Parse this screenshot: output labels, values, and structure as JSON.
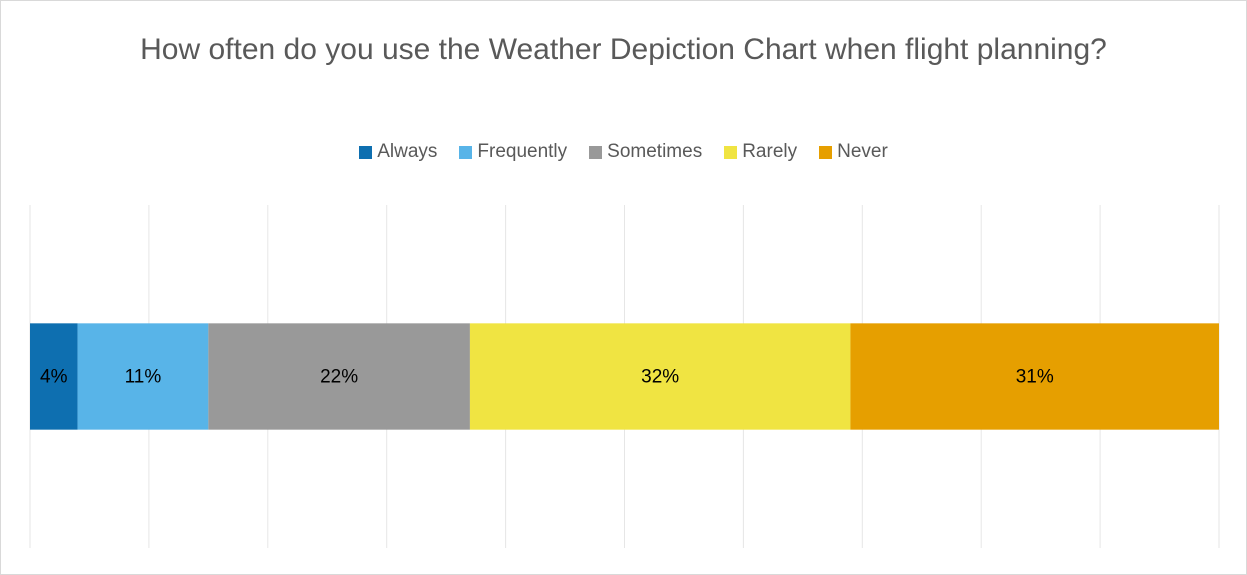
{
  "chart_data": {
    "type": "bar",
    "orientation": "horizontal",
    "stacked": true,
    "title": "How often do you use the Weather Depiction Chart when flight planning?",
    "categories": [
      null
    ],
    "series": [
      {
        "name": "Always",
        "color": "#0e6fb0",
        "values": [
          4
        ],
        "value_labels": [
          "4%"
        ]
      },
      {
        "name": "Frequently",
        "color": "#58b4e8",
        "values": [
          11
        ],
        "value_labels": [
          "11%"
        ]
      },
      {
        "name": "Sometimes",
        "color": "#999999",
        "values": [
          22
        ],
        "value_labels": [
          "22%"
        ]
      },
      {
        "name": "Rarely",
        "color": "#f0e442",
        "values": [
          32
        ],
        "value_labels": [
          "32%"
        ]
      },
      {
        "name": "Never",
        "color": "#e69f00",
        "values": [
          31
        ],
        "value_labels": [
          "31%"
        ]
      }
    ],
    "xlim": [
      0,
      100
    ],
    "xticks": [
      0,
      10,
      20,
      30,
      40,
      50,
      60,
      70,
      80,
      90,
      100
    ],
    "grid": true,
    "legend": "top"
  }
}
